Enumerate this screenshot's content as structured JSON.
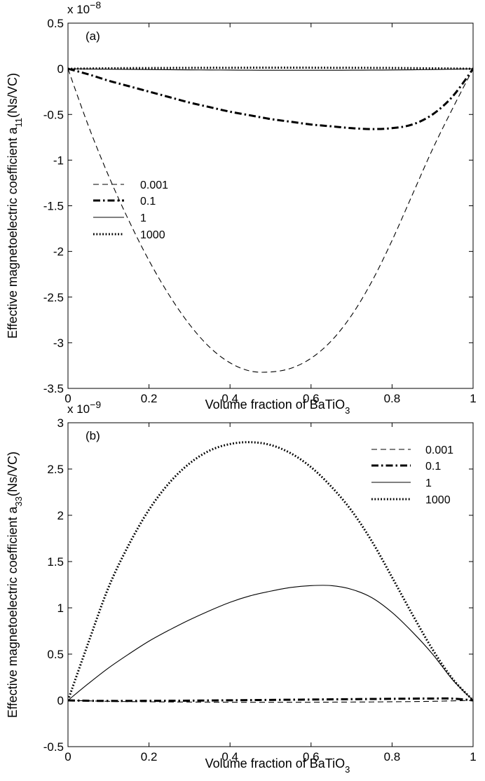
{
  "chart_data": [
    {
      "type": "line",
      "panel_label": "(a)",
      "scale_note": {
        "base": "x 10",
        "exponent": "−8"
      },
      "xlabel": {
        "main": "Volume fraction of BaTiO",
        "sub": "3"
      },
      "ylabel": {
        "main": "Effective magnetoelectric coefficient a",
        "sub": "11",
        "unit": "(Ns/VC)"
      },
      "xlim": [
        0,
        1
      ],
      "ylim": [
        -3.5,
        0.5
      ],
      "xticks": [
        "0",
        "0.2",
        "0.4",
        "0.6",
        "0.8",
        "1"
      ],
      "yticks": [
        "0.5",
        "0",
        "-0.5",
        "-1",
        "-1.5",
        "-2",
        "-2.5",
        "-3",
        "-3.5"
      ],
      "grid": false,
      "legend_position": "lower-left",
      "x": [
        0,
        0.05,
        0.1,
        0.15,
        0.2,
        0.25,
        0.3,
        0.35,
        0.4,
        0.45,
        0.5,
        0.55,
        0.6,
        0.65,
        0.7,
        0.75,
        0.8,
        0.85,
        0.9,
        0.95,
        1
      ],
      "series": [
        {
          "name": "0.001",
          "style": "dashed",
          "values": [
            0,
            -0.62,
            -1.17,
            -1.66,
            -2.1,
            -2.48,
            -2.8,
            -3.05,
            -3.22,
            -3.31,
            -3.32,
            -3.28,
            -3.17,
            -2.98,
            -2.7,
            -2.33,
            -1.88,
            -1.38,
            -0.88,
            -0.43,
            0
          ]
        },
        {
          "name": "0.1",
          "style": "dashdot",
          "values": [
            0,
            -0.06,
            -0.13,
            -0.19,
            -0.25,
            -0.31,
            -0.37,
            -0.42,
            -0.47,
            -0.51,
            -0.55,
            -0.58,
            -0.61,
            -0.63,
            -0.65,
            -0.66,
            -0.65,
            -0.61,
            -0.5,
            -0.3,
            0
          ]
        },
        {
          "name": "1",
          "style": "solid",
          "values": [
            0,
            -0.002,
            -0.004,
            -0.006,
            -0.008,
            -0.01,
            -0.012,
            -0.013,
            -0.014,
            -0.015,
            -0.016,
            -0.016,
            -0.016,
            -0.016,
            -0.015,
            -0.014,
            -0.013,
            -0.011,
            -0.008,
            -0.004,
            0
          ]
        },
        {
          "name": "1000",
          "style": "dotted",
          "values": [
            0,
            0.003,
            0.005,
            0.007,
            0.008,
            0.009,
            0.01,
            0.011,
            0.011,
            0.012,
            0.012,
            0.012,
            0.012,
            0.011,
            0.011,
            0.01,
            0.009,
            0.007,
            0.005,
            0.003,
            0
          ]
        }
      ]
    },
    {
      "type": "line",
      "panel_label": "(b)",
      "scale_note": {
        "base": "x 10",
        "exponent": "−9"
      },
      "xlabel": {
        "main": "Volume fraction of BaTiO",
        "sub": "3"
      },
      "ylabel": {
        "main": "Effective magnetoelectric coefficient a",
        "sub": "33",
        "unit": "(Ns/VC)"
      },
      "xlim": [
        0,
        1
      ],
      "ylim": [
        -0.5,
        3
      ],
      "xticks": [
        "0",
        "0.2",
        "0.4",
        "0.6",
        "0.8",
        "1"
      ],
      "yticks": [
        "3",
        "2.5",
        "2",
        "1.5",
        "1",
        "0.5",
        "0",
        "-0.5"
      ],
      "grid": false,
      "legend_position": "top-right",
      "x": [
        0,
        0.05,
        0.1,
        0.15,
        0.2,
        0.25,
        0.3,
        0.35,
        0.4,
        0.45,
        0.5,
        0.55,
        0.6,
        0.65,
        0.7,
        0.75,
        0.8,
        0.85,
        0.9,
        0.95,
        1
      ],
      "series": [
        {
          "name": "0.001",
          "style": "dashed",
          "values": [
            0,
            -0.005,
            -0.01,
            -0.013,
            -0.015,
            -0.017,
            -0.018,
            -0.019,
            -0.02,
            -0.02,
            -0.02,
            -0.02,
            -0.02,
            -0.019,
            -0.018,
            -0.017,
            -0.015,
            -0.013,
            -0.01,
            -0.005,
            0
          ]
        },
        {
          "name": "0.1",
          "style": "dashdot",
          "values": [
            0,
            -0.004,
            -0.006,
            -0.006,
            -0.005,
            -0.004,
            -0.003,
            -0.001,
            0.001,
            0.003,
            0.005,
            0.007,
            0.009,
            0.011,
            0.013,
            0.015,
            0.017,
            0.019,
            0.02,
            0.019,
            0
          ]
        },
        {
          "name": "1",
          "style": "solid",
          "values": [
            0,
            0.18,
            0.35,
            0.5,
            0.64,
            0.76,
            0.87,
            0.97,
            1.06,
            1.13,
            1.18,
            1.22,
            1.24,
            1.24,
            1.2,
            1.11,
            0.95,
            0.74,
            0.5,
            0.22,
            0
          ]
        },
        {
          "name": "1000",
          "style": "dotted",
          "values": [
            0,
            0.62,
            1.22,
            1.68,
            2.06,
            2.35,
            2.56,
            2.7,
            2.77,
            2.79,
            2.76,
            2.67,
            2.52,
            2.31,
            2.05,
            1.72,
            1.33,
            0.93,
            0.55,
            0.23,
            0
          ]
        }
      ]
    }
  ]
}
